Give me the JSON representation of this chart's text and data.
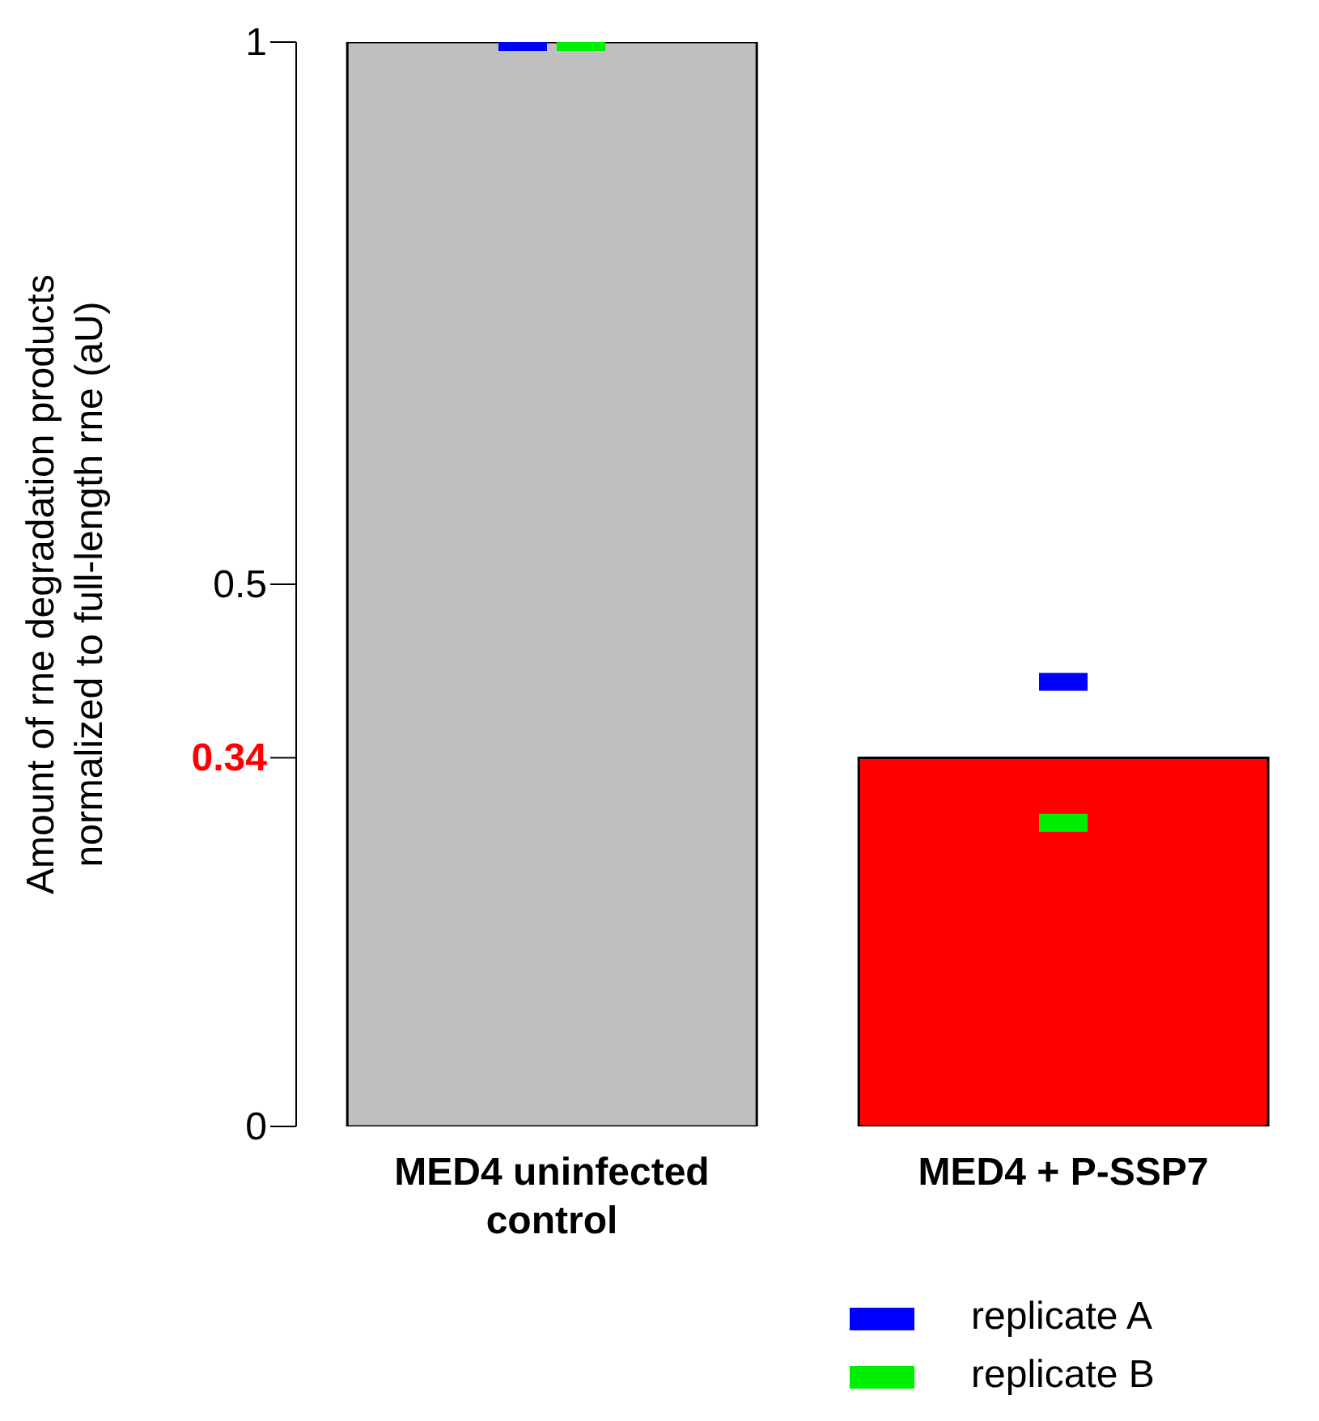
{
  "chart_data": {
    "type": "bar",
    "ylabel": "Amount of rne degradation products normalized to full-length rne (aU)",
    "categories": [
      "MED4 uninfected control",
      "MED4 + P-SSP7"
    ],
    "values": [
      1,
      0.34
    ],
    "colors": [
      "#bfbfbf",
      "#ff0000"
    ],
    "series": [
      {
        "name": "replicate A",
        "type": "scatter",
        "color": "#0000ff",
        "x": [
          "MED4 uninfected control",
          "MED4 + P-SSP7"
        ],
        "values": [
          1,
          0.41
        ]
      },
      {
        "name": "replicate B",
        "type": "scatter",
        "color": "#00ee00",
        "x": [
          "MED4 uninfected control",
          "MED4 + P-SSP7"
        ],
        "values": [
          1,
          0.28
        ]
      }
    ],
    "ylim": [
      0,
      1
    ],
    "yticks": [
      0,
      {
        "value": 0.34,
        "label": "0.34"
      },
      0.5,
      1
    ],
    "marker": "square",
    "legend": "bottom right"
  }
}
